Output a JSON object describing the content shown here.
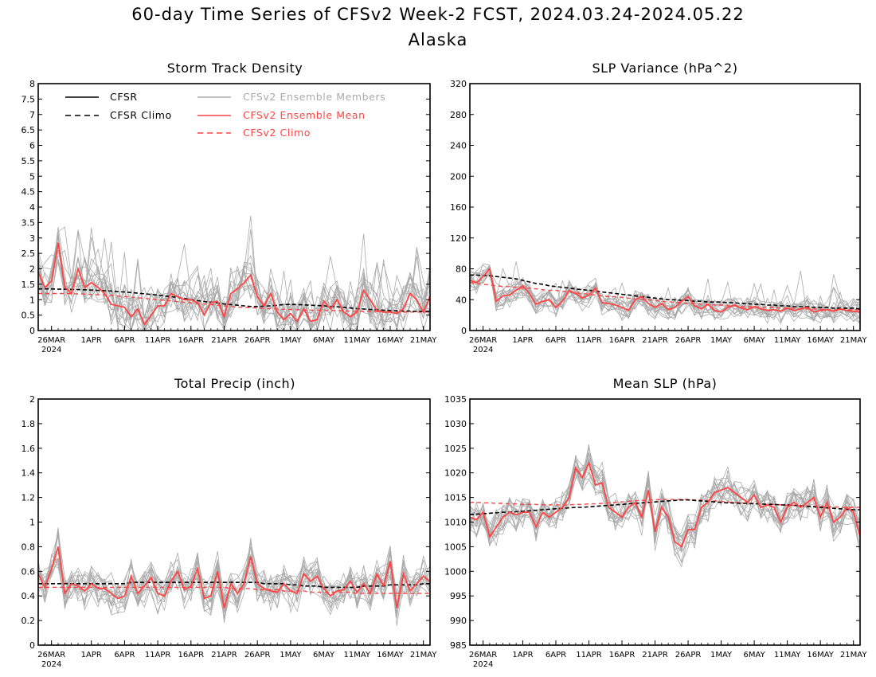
{
  "figure": {
    "title": "60-day Time Series of CFSv2 Week-2 FCST, 2024.03.24-2024.05.22",
    "subtitle": "Alaska"
  },
  "colors": {
    "cfsr": "#000000",
    "members": "#aaaaaa",
    "ens_mean": "#ff4444",
    "cfsv2_climo": "#ff4444"
  },
  "legend": {
    "items": [
      {
        "label": "CFSR",
        "style": "solid-black"
      },
      {
        "label": "CFSR Climo",
        "style": "dashed-black"
      },
      {
        "label": "CFSv2 Ensemble Members",
        "style": "solid-gray"
      },
      {
        "label": "CFSv2 Ensemble Mean",
        "style": "solid-red"
      },
      {
        "label": "CFSv2 Climo",
        "style": "dashed-red"
      }
    ]
  },
  "x_axis": {
    "tick_labels": [
      "26MAR",
      "1APR",
      "6APR",
      "11APR",
      "16APR",
      "21APR",
      "26APR",
      "1MAY",
      "6MAY",
      "11MAY",
      "16MAY",
      "21MAY"
    ],
    "tick_days": [
      2,
      8,
      13,
      18,
      23,
      28,
      33,
      38,
      43,
      48,
      53,
      58
    ],
    "year_label": "2024",
    "x_range_days": [
      0,
      59
    ],
    "start_date": "2024-03-24"
  },
  "chart_data": [
    {
      "type": "line",
      "title": "Storm Track Density",
      "ylim": [
        0,
        8
      ],
      "yticks": [
        "0",
        "0.5",
        "1",
        "1.5",
        "2",
        "2.5",
        "3",
        "3.5",
        "4",
        "4.5",
        "5",
        "5.5",
        "6",
        "6.5",
        "7",
        "7.5",
        "8"
      ],
      "legend": "top-left",
      "member_count": 16,
      "series": [
        {
          "role": "ensemble_mean",
          "values": [
            1.9,
            1.4,
            1.6,
            2.85,
            1.4,
            1.2,
            2.0,
            1.4,
            1.55,
            1.4,
            1.2,
            0.85,
            0.8,
            0.75,
            0.45,
            0.7,
            0.2,
            0.5,
            0.8,
            0.8,
            1.2,
            1.1,
            1.0,
            1.0,
            0.9,
            0.5,
            0.9,
            0.95,
            0.45,
            1.2,
            1.35,
            1.55,
            1.8,
            1.1,
            0.8,
            1.2,
            0.6,
            0.35,
            0.55,
            0.3,
            0.7,
            0.3,
            0.35,
            0.95,
            0.7,
            1.0,
            0.6,
            0.45,
            0.6,
            1.3,
            1.0,
            0.65,
            0.6,
            0.6,
            0.55,
            0.7,
            1.2,
            1.0,
            0.6,
            1.1
          ]
        },
        {
          "role": "cfsr_climo",
          "values": [
            1.35,
            1.35,
            1.35,
            1.34,
            1.34,
            1.33,
            1.33,
            1.32,
            1.31,
            1.3,
            1.29,
            1.28,
            1.26,
            1.25,
            1.23,
            1.21,
            1.19,
            1.17,
            1.15,
            1.12,
            1.1,
            1.07,
            1.04,
            1.0,
            0.97,
            0.94,
            0.92,
            0.89,
            0.86,
            0.84,
            0.82,
            0.8,
            0.78,
            0.78,
            0.79,
            0.8,
            0.82,
            0.84,
            0.85,
            0.84,
            0.83,
            0.82,
            0.81,
            0.8,
            0.78,
            0.77,
            0.75,
            0.73,
            0.71,
            0.7,
            0.68,
            0.67,
            0.66,
            0.65,
            0.64,
            0.63,
            0.63,
            0.62,
            0.62,
            0.62
          ]
        },
        {
          "role": "cfsv2_climo",
          "values": [
            1.2,
            1.2,
            1.2,
            1.2,
            1.2,
            1.19,
            1.19,
            1.18,
            1.17,
            1.16,
            1.15,
            1.14,
            1.12,
            1.1,
            1.08,
            1.06,
            1.04,
            1.02,
            1.0,
            0.98,
            0.96,
            0.94,
            0.92,
            0.9,
            0.88,
            0.86,
            0.84,
            0.82,
            0.8,
            0.78,
            0.76,
            0.75,
            0.74,
            0.73,
            0.72,
            0.71,
            0.7,
            0.69,
            0.68,
            0.67,
            0.67,
            0.66,
            0.66,
            0.65,
            0.65,
            0.64,
            0.64,
            0.63,
            0.63,
            0.62,
            0.62,
            0.61,
            0.61,
            0.61,
            0.6,
            0.6,
            0.6,
            0.6,
            0.6,
            0.6
          ]
        }
      ]
    },
    {
      "type": "line",
      "title": "SLP Variance (hPa^2)",
      "ylim": [
        0,
        320
      ],
      "yticks": [
        "0",
        "40",
        "80",
        "120",
        "160",
        "200",
        "240",
        "280",
        "320"
      ],
      "member_count": 16,
      "series": [
        {
          "role": "ensemble_mean",
          "values": [
            65,
            62,
            70,
            80,
            38,
            45,
            46,
            52,
            58,
            48,
            34,
            38,
            40,
            30,
            38,
            52,
            48,
            42,
            46,
            55,
            36,
            35,
            33,
            30,
            26,
            40,
            44,
            35,
            30,
            35,
            27,
            30,
            38,
            44,
            32,
            28,
            34,
            26,
            24,
            30,
            33,
            29,
            27,
            31,
            28,
            26,
            27,
            25,
            29,
            26,
            28,
            30,
            24,
            26,
            27,
            25,
            28,
            26,
            25,
            24
          ]
        },
        {
          "role": "cfsr_climo",
          "values": [
            72,
            72,
            71,
            71,
            70,
            69,
            68,
            67,
            65,
            63,
            61,
            60,
            58,
            57,
            56,
            55,
            54,
            53,
            52,
            51,
            50,
            49,
            48,
            47,
            46,
            45,
            44,
            43,
            42,
            41,
            40,
            40,
            39,
            39,
            38,
            38,
            37,
            37,
            37,
            36,
            36,
            35,
            35,
            34,
            34,
            33,
            33,
            32,
            32,
            31,
            31,
            31,
            30,
            30,
            30,
            29,
            29,
            29,
            29,
            28
          ]
        },
        {
          "role": "cfsv2_climo",
          "values": [
            62,
            61,
            60,
            59,
            58,
            57,
            57,
            56,
            55,
            55,
            54,
            53,
            52,
            52,
            51,
            50,
            49,
            48,
            47,
            46,
            45,
            44,
            44,
            43,
            42,
            41,
            40,
            40,
            39,
            38,
            37,
            37,
            36,
            35,
            35,
            34,
            34,
            33,
            33,
            32,
            32,
            31,
            31,
            31,
            30,
            30,
            30,
            29,
            29,
            29,
            28,
            28,
            28,
            28,
            27,
            27,
            27,
            27,
            27,
            27
          ]
        }
      ]
    },
    {
      "type": "line",
      "title": "Total Precip (inch)",
      "ylim": [
        0,
        2
      ],
      "yticks": [
        "0",
        "0.2",
        "0.4",
        "0.6",
        "0.8",
        "1",
        "1.2",
        "1.4",
        "1.6",
        "1.8",
        "2"
      ],
      "member_count": 16,
      "series": [
        {
          "role": "ensemble_mean",
          "values": [
            0.58,
            0.47,
            0.62,
            0.8,
            0.42,
            0.5,
            0.48,
            0.44,
            0.5,
            0.46,
            0.46,
            0.42,
            0.38,
            0.4,
            0.56,
            0.42,
            0.48,
            0.55,
            0.42,
            0.4,
            0.52,
            0.6,
            0.45,
            0.48,
            0.62,
            0.38,
            0.4,
            0.6,
            0.3,
            0.5,
            0.42,
            0.5,
            0.72,
            0.5,
            0.46,
            0.44,
            0.43,
            0.5,
            0.44,
            0.42,
            0.58,
            0.52,
            0.56,
            0.46,
            0.4,
            0.44,
            0.45,
            0.52,
            0.43,
            0.5,
            0.42,
            0.58,
            0.48,
            0.68,
            0.3,
            0.58,
            0.44,
            0.5,
            0.56,
            0.52
          ]
        },
        {
          "role": "cfsr_climo",
          "values": [
            0.5,
            0.5,
            0.5,
            0.5,
            0.5,
            0.5,
            0.5,
            0.5,
            0.5,
            0.5,
            0.5,
            0.5,
            0.5,
            0.5,
            0.51,
            0.51,
            0.51,
            0.51,
            0.51,
            0.51,
            0.51,
            0.51,
            0.51,
            0.51,
            0.51,
            0.51,
            0.51,
            0.51,
            0.51,
            0.51,
            0.51,
            0.51,
            0.51,
            0.51,
            0.5,
            0.5,
            0.5,
            0.5,
            0.49,
            0.49,
            0.48,
            0.48,
            0.48,
            0.47,
            0.47,
            0.47,
            0.47,
            0.47,
            0.47,
            0.48,
            0.48,
            0.48,
            0.48,
            0.49,
            0.49,
            0.49,
            0.49,
            0.49,
            0.5,
            0.5
          ]
        },
        {
          "role": "cfsv2_climo",
          "values": [
            0.47,
            0.47,
            0.47,
            0.47,
            0.47,
            0.47,
            0.47,
            0.47,
            0.47,
            0.47,
            0.47,
            0.47,
            0.47,
            0.47,
            0.47,
            0.47,
            0.47,
            0.47,
            0.47,
            0.47,
            0.47,
            0.47,
            0.47,
            0.47,
            0.47,
            0.47,
            0.47,
            0.47,
            0.47,
            0.46,
            0.46,
            0.46,
            0.46,
            0.45,
            0.45,
            0.45,
            0.45,
            0.44,
            0.44,
            0.44,
            0.44,
            0.43,
            0.43,
            0.43,
            0.43,
            0.43,
            0.43,
            0.43,
            0.42,
            0.42,
            0.42,
            0.42,
            0.42,
            0.42,
            0.42,
            0.42,
            0.42,
            0.42,
            0.42,
            0.42
          ]
        }
      ]
    },
    {
      "type": "line",
      "title": "Mean SLP (hPa)",
      "ylim": [
        985,
        1035
      ],
      "yticks": [
        "985",
        "990",
        "995",
        "1000",
        "1005",
        "1010",
        "1015",
        "1020",
        "1025",
        "1030",
        "1035"
      ],
      "member_count": 16,
      "series": [
        {
          "role": "ensemble_mean",
          "values": [
            1011,
            1010.5,
            1012,
            1007,
            1009,
            1011,
            1012,
            1011.5,
            1012,
            1012,
            1009,
            1012,
            1011,
            1012,
            1013,
            1015,
            1021,
            1019,
            1022,
            1017.5,
            1018,
            1013,
            1012,
            1011,
            1013,
            1014,
            1011,
            1016.5,
            1008,
            1013,
            1011,
            1006,
            1005,
            1008.5,
            1008.5,
            1013,
            1014,
            1016,
            1016.5,
            1017,
            1016,
            1015,
            1014,
            1015.5,
            1013,
            1013.5,
            1013,
            1010,
            1013,
            1014,
            1013,
            1014,
            1015,
            1011,
            1014,
            1010,
            1011,
            1013,
            1012,
            1007
          ]
        },
        {
          "role": "cfsr_climo",
          "values": [
            1011.5,
            1011.6,
            1011.7,
            1011.8,
            1011.9,
            1012.0,
            1012.0,
            1012.1,
            1012.2,
            1012.3,
            1012.4,
            1012.5,
            1012.6,
            1012.7,
            1012.8,
            1012.9,
            1013.0,
            1013.0,
            1013.1,
            1013.2,
            1013.3,
            1013.4,
            1013.5,
            1013.6,
            1013.7,
            1013.8,
            1013.9,
            1014.0,
            1014.1,
            1014.2,
            1014.3,
            1014.4,
            1014.5,
            1014.5,
            1014.4,
            1014.3,
            1014.2,
            1014.1,
            1014.0,
            1013.9,
            1013.9,
            1013.8,
            1013.8,
            1013.7,
            1013.7,
            1013.6,
            1013.6,
            1013.5,
            1013.5,
            1013.4,
            1013.3,
            1013.2,
            1013.1,
            1013.0,
            1012.9,
            1012.8,
            1012.7,
            1012.6,
            1012.5,
            1012.5
          ]
        },
        {
          "role": "cfsv2_climo",
          "values": [
            1014.0,
            1014.0,
            1013.9,
            1013.9,
            1013.8,
            1013.8,
            1013.7,
            1013.7,
            1013.6,
            1013.6,
            1013.6,
            1013.5,
            1013.5,
            1013.5,
            1013.5,
            1013.5,
            1013.6,
            1013.6,
            1013.7,
            1013.7,
            1013.8,
            1013.9,
            1014.0,
            1014.1,
            1014.2,
            1014.3,
            1014.4,
            1014.5,
            1014.5,
            1014.6,
            1014.6,
            1014.6,
            1014.6,
            1014.6,
            1014.5,
            1014.5,
            1014.4,
            1014.3,
            1014.2,
            1014.1,
            1014.0,
            1013.9,
            1013.8,
            1013.8,
            1013.7,
            1013.6,
            1013.6,
            1013.5,
            1013.4,
            1013.4,
            1013.3,
            1013.3,
            1013.2,
            1013.2,
            1013.1,
            1013.1,
            1013.0,
            1013.0,
            1013.0,
            1013.0
          ]
        }
      ]
    }
  ]
}
